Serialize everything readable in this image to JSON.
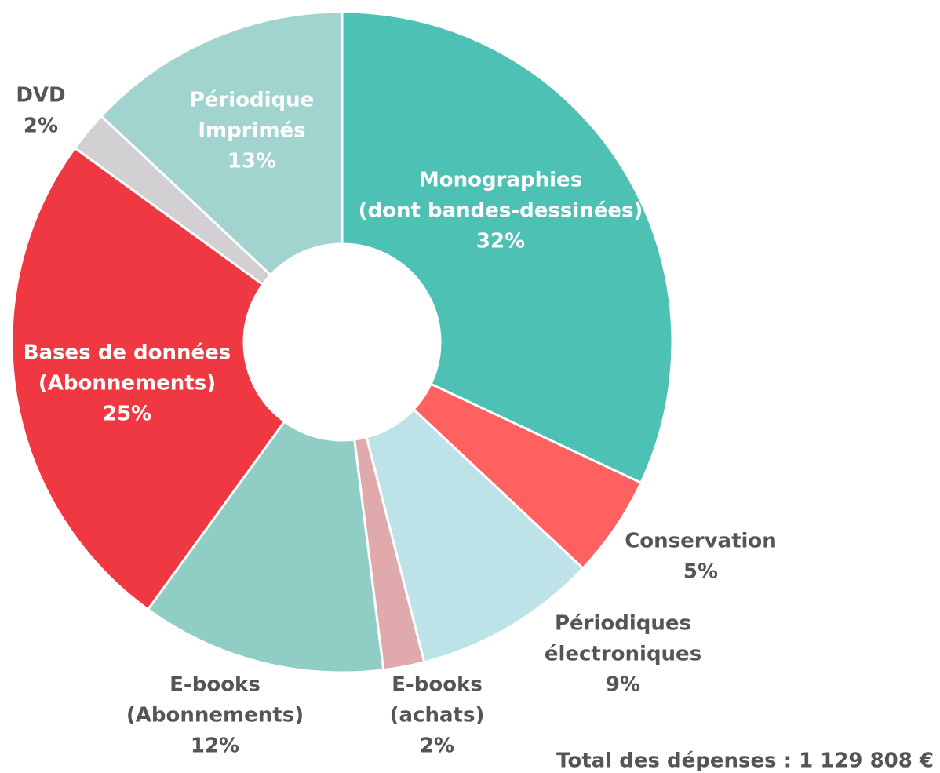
{
  "chart_data": {
    "type": "donut",
    "categories": [
      [
        "Monographies",
        "(dont bandes-dessinées)"
      ],
      [
        "Conservation"
      ],
      [
        "Périodiques",
        "électroniques"
      ],
      [
        "E-books",
        "(achats)"
      ],
      [
        "E-books",
        "(Abonnements)"
      ],
      [
        "Bases de données",
        "(Abonnements)"
      ],
      [
        "DVD"
      ],
      [
        "Périodique",
        "Imprimés"
      ]
    ],
    "values": [
      32,
      5,
      9,
      2,
      12,
      25,
      2,
      13
    ],
    "value_labels": [
      "32%",
      "5%",
      "9%",
      "2%",
      "12%",
      "25%",
      "2%",
      "13%"
    ],
    "colors": [
      "#4dc1b3",
      "#ff6161",
      "#bde2e7",
      "#e0a9ab",
      "#8fcdc5",
      "#f03843",
      "#d2d0d2",
      "#a1d4cf"
    ],
    "annotation": "Total des dépenses : 1 129 808 €"
  }
}
